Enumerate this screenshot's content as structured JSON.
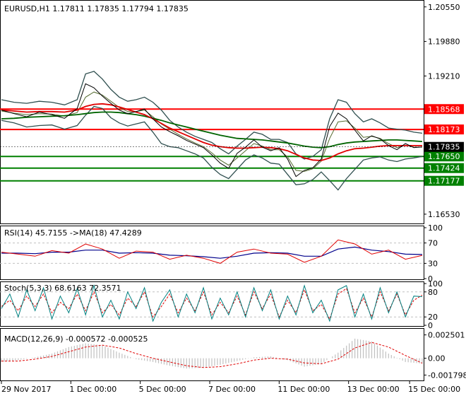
{
  "colors": {
    "background": "#ffffff",
    "frame": "#000000",
    "text": "#000000",
    "price_line": "#000000",
    "bollinger": "#2f4f4f",
    "ma_fast": "#556b2f",
    "ma_red": "#e00000",
    "ma_green": "#006400",
    "level_red": "#ff0000",
    "level_green": "#008000",
    "current_price_bg": "#000000",
    "current_price_text": "#ffffff",
    "level_label_text": "#ffffff",
    "rsi_line": "#e00000",
    "rsi_ma": "#00008b",
    "stoch_main": "#008080",
    "stoch_signal": "#e00000",
    "macd_hist": "#c0c0c0",
    "macd_signal": "#e00000"
  },
  "chart_data": [
    {
      "type": "line",
      "panel": "price",
      "title": "EURUSD,H1  1.17811 1.17835 1.17794 1.17835",
      "symbol": "EURUSD",
      "timeframe": "H1",
      "ohlc": [
        1.17811,
        1.17835,
        1.17794,
        1.17835
      ],
      "ylim": [
        1.1635,
        1.2067
      ],
      "y_ticks": [
        "1.20550",
        "1.19880",
        "1.19210",
        "1.16530"
      ],
      "y_tick_values": [
        1.2055,
        1.1988,
        1.1921,
        1.1653
      ],
      "current_price": {
        "label": "1.17835",
        "value": 1.17835
      },
      "levels": [
        {
          "label": "1.18568",
          "value": 1.18568,
          "color": "red"
        },
        {
          "label": "1.18173",
          "value": 1.18173,
          "color": "red"
        },
        {
          "label": "1.17650",
          "value": 1.1765,
          "color": "green"
        },
        {
          "label": "1.17424",
          "value": 1.17424,
          "color": "green"
        },
        {
          "label": "1.17177",
          "value": 1.17177,
          "color": "green"
        }
      ],
      "x": [
        0,
        3,
        6,
        9,
        12,
        15,
        18,
        20,
        22,
        24,
        26,
        28,
        30,
        32,
        34,
        36,
        38,
        40,
        42,
        44,
        46,
        48,
        50,
        52,
        54,
        56,
        58,
        60,
        62,
        64,
        66,
        68,
        70,
        72,
        74,
        76,
        78,
        80,
        82,
        84,
        86,
        88,
        90,
        92,
        94,
        96,
        98,
        100
      ],
      "price": [
        1.1855,
        1.1848,
        1.1842,
        1.1851,
        1.1846,
        1.1839,
        1.1858,
        1.1906,
        1.1898,
        1.1882,
        1.1868,
        1.1855,
        1.1848,
        1.1852,
        1.1857,
        1.1838,
        1.1822,
        1.1813,
        1.1805,
        1.1796,
        1.1789,
        1.1782,
        1.1768,
        1.1752,
        1.1742,
        1.1771,
        1.1783,
        1.1797,
        1.1783,
        1.1776,
        1.1782,
        1.176,
        1.1726,
        1.1738,
        1.1743,
        1.176,
        1.1823,
        1.1849,
        1.1838,
        1.1816,
        1.1795,
        1.1805,
        1.1799,
        1.1786,
        1.1778,
        1.179,
        1.1782,
        1.17835
      ],
      "bb_upper": [
        1.1875,
        1.187,
        1.1868,
        1.1872,
        1.187,
        1.1865,
        1.1875,
        1.1925,
        1.193,
        1.1915,
        1.1895,
        1.188,
        1.1872,
        1.1875,
        1.188,
        1.187,
        1.1855,
        1.1835,
        1.1822,
        1.1812,
        1.1804,
        1.1798,
        1.1792,
        1.178,
        1.177,
        1.1785,
        1.1798,
        1.1812,
        1.1808,
        1.1798,
        1.1798,
        1.1792,
        1.177,
        1.176,
        1.1765,
        1.1778,
        1.1838,
        1.1875,
        1.187,
        1.1848,
        1.1832,
        1.1838,
        1.183,
        1.182,
        1.1818,
        1.1816,
        1.1812,
        1.181
      ],
      "bb_lower": [
        1.1835,
        1.183,
        1.1822,
        1.1825,
        1.1826,
        1.1818,
        1.1825,
        1.1845,
        1.1862,
        1.1858,
        1.184,
        1.183,
        1.1824,
        1.1828,
        1.1832,
        1.1812,
        1.179,
        1.1784,
        1.1782,
        1.1776,
        1.177,
        1.1762,
        1.1744,
        1.173,
        1.1722,
        1.174,
        1.1758,
        1.1768,
        1.1762,
        1.1752,
        1.175,
        1.173,
        1.171,
        1.1712,
        1.172,
        1.1735,
        1.1718,
        1.17,
        1.1722,
        1.174,
        1.1758,
        1.1762,
        1.1764,
        1.1758,
        1.1755,
        1.176,
        1.1762,
        1.1765
      ],
      "ma_fast": [
        1.1853,
        1.1849,
        1.1846,
        1.1848,
        1.1847,
        1.1843,
        1.185,
        1.188,
        1.189,
        1.1884,
        1.1872,
        1.186,
        1.1852,
        1.1852,
        1.1855,
        1.1842,
        1.1828,
        1.1818,
        1.1808,
        1.1799,
        1.1791,
        1.1784,
        1.1772,
        1.1758,
        1.1748,
        1.1762,
        1.1776,
        1.179,
        1.1785,
        1.1778,
        1.1778,
        1.1764,
        1.1738,
        1.1736,
        1.1741,
        1.1756,
        1.18,
        1.1832,
        1.1834,
        1.182,
        1.1802,
        1.1804,
        1.18,
        1.179,
        1.1782,
        1.1787,
        1.1783,
        1.1783
      ],
      "ma_red": [
        1.1855,
        1.1853,
        1.1851,
        1.1852,
        1.1852,
        1.1851,
        1.1855,
        1.1862,
        1.1866,
        1.1867,
        1.1865,
        1.1861,
        1.1856,
        1.1851,
        1.1846,
        1.1838,
        1.1829,
        1.182,
        1.1813,
        1.1806,
        1.1799,
        1.1792,
        1.1787,
        1.1784,
        1.1782,
        1.1781,
        1.1781,
        1.1782,
        1.1783,
        1.1782,
        1.178,
        1.1776,
        1.1769,
        1.1762,
        1.1758,
        1.1757,
        1.1762,
        1.177,
        1.1776,
        1.178,
        1.1781,
        1.1783,
        1.1785,
        1.1786,
        1.1786,
        1.1786,
        1.1786,
        1.1786
      ],
      "ma_green": [
        1.1838,
        1.1839,
        1.1841,
        1.1842,
        1.1843,
        1.1844,
        1.1846,
        1.1848,
        1.185,
        1.1851,
        1.1851,
        1.185,
        1.1848,
        1.1846,
        1.1843,
        1.1839,
        1.1835,
        1.183,
        1.1826,
        1.1822,
        1.1818,
        1.1814,
        1.181,
        1.1806,
        1.1803,
        1.18,
        1.1799,
        1.1798,
        1.1797,
        1.1795,
        1.1793,
        1.1791,
        1.1788,
        1.1785,
        1.1783,
        1.1782,
        1.1784,
        1.1788,
        1.1791,
        1.1793,
        1.1794,
        1.1795,
        1.1796,
        1.1797,
        1.1797,
        1.1796,
        1.1795,
        1.1794
      ]
    },
    {
      "type": "line",
      "panel": "rsi",
      "title": "RSI(14) 45.7155   ->MA(18) 47.4289",
      "ylim": [
        0,
        100
      ],
      "y_ticks": [
        "100",
        "70",
        "30",
        "0"
      ],
      "y_tick_values": [
        100,
        70,
        30,
        0
      ],
      "x": [
        0,
        4,
        8,
        12,
        16,
        20,
        24,
        28,
        32,
        36,
        40,
        44,
        48,
        52,
        56,
        60,
        64,
        68,
        72,
        76,
        80,
        84,
        88,
        92,
        96,
        100
      ],
      "rsi": [
        52,
        48,
        44,
        55,
        50,
        68,
        58,
        40,
        54,
        52,
        38,
        46,
        40,
        30,
        52,
        58,
        50,
        48,
        32,
        44,
        76,
        68,
        48,
        56,
        38,
        45.7
      ],
      "rsi_ma": [
        50,
        50,
        49,
        52,
        52,
        56,
        56,
        50,
        51,
        50,
        46,
        45,
        43,
        40,
        44,
        50,
        51,
        50,
        44,
        44,
        58,
        62,
        56,
        53,
        48,
        47.4
      ]
    },
    {
      "type": "line",
      "panel": "stochastic",
      "title": "Stoch(5,3,3) 68.6163 72.3571",
      "ylim": [
        0,
        100
      ],
      "y_ticks": [
        "100",
        "80",
        "20",
        "0"
      ],
      "y_tick_values": [
        100,
        80,
        20,
        0
      ],
      "x": [
        0,
        2,
        4,
        6,
        8,
        10,
        12,
        14,
        16,
        18,
        20,
        22,
        24,
        26,
        28,
        30,
        32,
        34,
        36,
        38,
        40,
        42,
        44,
        46,
        48,
        50,
        52,
        54,
        56,
        58,
        60,
        62,
        64,
        66,
        68,
        70,
        72,
        74,
        76,
        78,
        80,
        82,
        84,
        86,
        88,
        90,
        92,
        94,
        96,
        98,
        100
      ],
      "stoch_main": [
        40,
        75,
        20,
        85,
        35,
        90,
        15,
        70,
        30,
        88,
        25,
        95,
        20,
        60,
        15,
        80,
        40,
        90,
        10,
        55,
        85,
        20,
        75,
        30,
        90,
        15,
        65,
        25,
        80,
        20,
        90,
        35,
        85,
        15,
        70,
        25,
        95,
        30,
        60,
        10,
        85,
        95,
        20,
        75,
        15,
        90,
        30,
        80,
        20,
        70,
        68.6
      ],
      "stoch_signal": [
        45,
        60,
        35,
        70,
        45,
        75,
        30,
        55,
        40,
        75,
        35,
        80,
        30,
        50,
        25,
        65,
        45,
        80,
        20,
        45,
        75,
        30,
        65,
        35,
        80,
        25,
        55,
        30,
        70,
        25,
        80,
        40,
        75,
        20,
        60,
        30,
        85,
        35,
        50,
        15,
        75,
        88,
        30,
        65,
        20,
        80,
        35,
        75,
        25,
        60,
        72.4
      ]
    },
    {
      "type": "bar",
      "panel": "macd",
      "title": "MACD(12,26,9) -0.000572 -0.000525",
      "ylim": [
        -0.0023,
        0.003
      ],
      "y_ticks": [
        "0.002501",
        "0.00",
        "-0.001798"
      ],
      "y_tick_values": [
        0.002501,
        0.0,
        -0.001798
      ],
      "x": [
        0,
        4,
        8,
        12,
        16,
        20,
        24,
        28,
        32,
        36,
        40,
        44,
        48,
        52,
        56,
        60,
        64,
        68,
        72,
        76,
        80,
        84,
        88,
        92,
        96,
        100
      ],
      "macd_hist": [
        -0.0004,
        -0.0002,
        0.0001,
        0.0005,
        0.0012,
        0.0016,
        0.0014,
        0.0006,
        -0.0001,
        -0.0004,
        -0.0008,
        -0.0011,
        -0.001,
        -0.0007,
        -0.0003,
        0.0001,
        0.0002,
        -0.0002,
        -0.0009,
        -0.0006,
        0.0006,
        0.0021,
        0.0018,
        0.0005,
        -0.0004,
        -0.000572
      ],
      "macd_signal": [
        -0.0003,
        -0.0003,
        -0.0001,
        0.0002,
        0.0007,
        0.0012,
        0.0014,
        0.0011,
        0.0005,
        0.0,
        -0.0004,
        -0.0008,
        -0.001,
        -0.0009,
        -0.0006,
        -0.0002,
        0.0,
        -0.0001,
        -0.0005,
        -0.0006,
        -0.0001,
        0.0011,
        0.0017,
        0.0012,
        0.0003,
        -0.000525
      ]
    }
  ],
  "x_axis": {
    "ticks": [
      "29 Nov 2017",
      "1 Dec 00:00",
      "5 Dec 00:00",
      "7 Dec 00:00",
      "11 Dec 00:00",
      "13 Dec 00:00",
      "15 Dec 00:00"
    ],
    "tick_positions": [
      0,
      16.5,
      33,
      49.5,
      66,
      82.5,
      97
    ]
  }
}
